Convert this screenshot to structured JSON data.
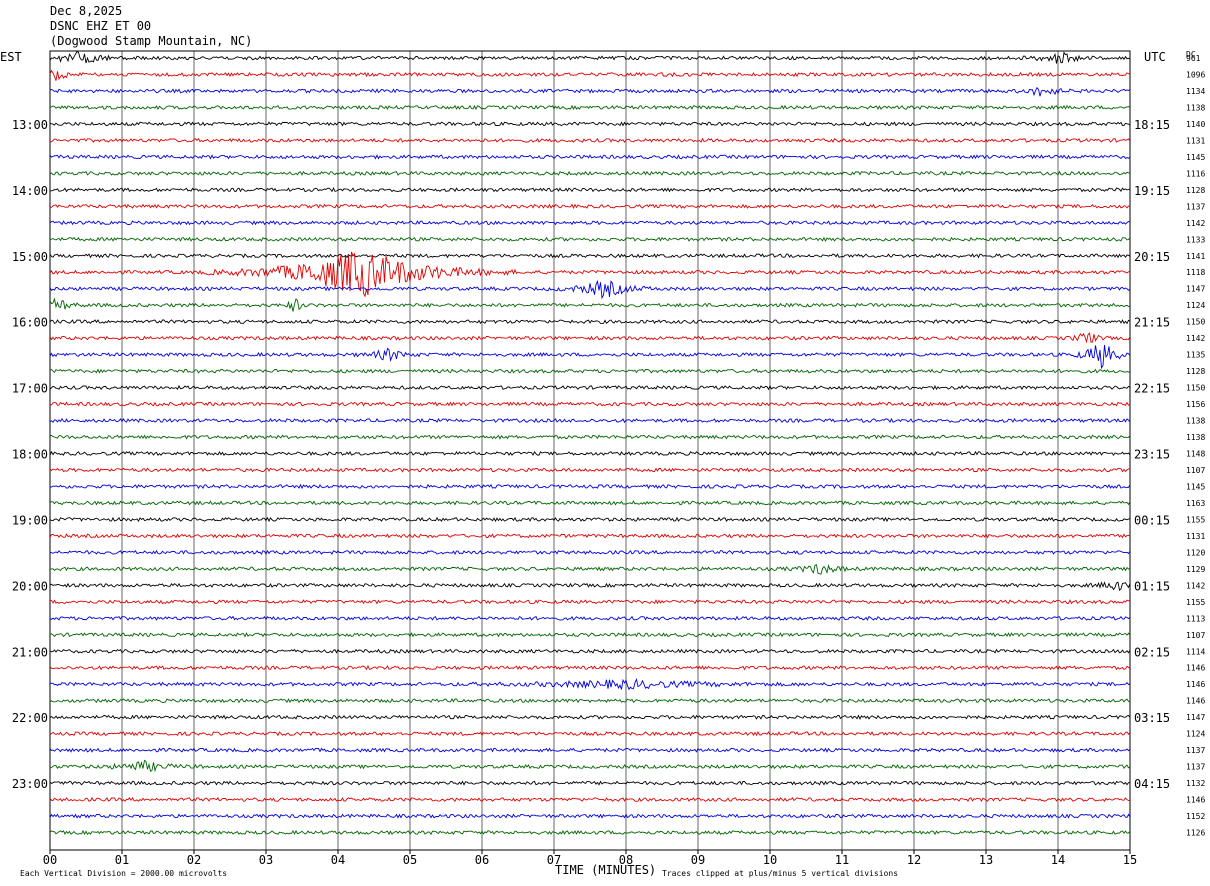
{
  "header": {
    "date": "Dec 8,2025",
    "station": "DSNC EHZ ET 00",
    "location": "(Dogwood Stamp Mountain, NC)"
  },
  "left_tz": "EST",
  "right_tz": "UTC",
  "dc_label": "DC",
  "footer": {
    "scale_note": "Each Vertical Division = 2000.00 microvolts",
    "x_axis_title": "TIME (MINUTES)",
    "clip_note": "Traces clipped at plus/minus 5 vertical divisions"
  },
  "colors": {
    "trace_cycle": [
      "#000000",
      "#e00000",
      "#0000e0",
      "#006400"
    ],
    "grid": "#000000",
    "background": "#ffffff"
  },
  "chart_data": {
    "type": "line",
    "subtype": "helicorder",
    "x_ticks": [
      "00",
      "01",
      "02",
      "03",
      "04",
      "05",
      "06",
      "07",
      "08",
      "09",
      "10",
      "11",
      "12",
      "13",
      "14",
      "15"
    ],
    "xlim": [
      0,
      15
    ],
    "xlabel": "TIME (MINUTES)",
    "traces_per_hour": 4,
    "row_count": 48,
    "left_hour_labels": [
      "13:00",
      "14:00",
      "15:00",
      "16:00",
      "17:00",
      "18:00",
      "19:00",
      "20:00",
      "21:00",
      "22:00",
      "23:00"
    ],
    "right_hour_labels": [
      "18:15",
      "19:15",
      "20:15",
      "21:15",
      "22:15",
      "23:15",
      "00:15",
      "01:15",
      "02:15",
      "03:15",
      "04:15"
    ],
    "dc_offsets": [
      "961",
      "1096",
      "1134",
      "1138",
      "1140",
      "1131",
      "1145",
      "1116",
      "1128",
      "1137",
      "1142",
      "1133",
      "1141",
      "1118",
      "1147",
      "1124",
      "1150",
      "1142",
      "1135",
      "1128",
      "1150",
      "1156",
      "1138",
      "1138",
      "1148",
      "1107",
      "1145",
      "1163",
      "1155",
      "1131",
      "1120",
      "1129",
      "1142",
      "1155",
      "1113",
      "1107",
      "1114",
      "1146",
      "1146",
      "1146",
      "1147",
      "1124",
      "1137",
      "1137",
      "1132",
      "1146",
      "1152",
      "1126"
    ],
    "events": [
      {
        "row": 0,
        "minute": 0.4,
        "width_min": 0.8,
        "amp": 6
      },
      {
        "row": 0,
        "minute": 14.0,
        "width_min": 0.5,
        "amp": 7
      },
      {
        "row": 1,
        "minute": 0.1,
        "width_min": 0.3,
        "amp": 6
      },
      {
        "row": 2,
        "minute": 13.8,
        "width_min": 0.4,
        "amp": 7
      },
      {
        "row": 13,
        "minute": 4.3,
        "width_min": 2.2,
        "amp": 26
      },
      {
        "row": 14,
        "minute": 7.7,
        "width_min": 0.8,
        "amp": 9
      },
      {
        "row": 15,
        "minute": 0.1,
        "width_min": 0.4,
        "amp": 7
      },
      {
        "row": 15,
        "minute": 3.4,
        "width_min": 0.2,
        "amp": 8
      },
      {
        "row": 17,
        "minute": 14.4,
        "width_min": 0.3,
        "amp": 8
      },
      {
        "row": 18,
        "minute": 14.6,
        "width_min": 0.5,
        "amp": 14
      },
      {
        "row": 18,
        "minute": 4.7,
        "width_min": 0.5,
        "amp": 6
      },
      {
        "row": 31,
        "minute": 10.7,
        "width_min": 0.6,
        "amp": 5
      },
      {
        "row": 32,
        "minute": 14.8,
        "width_min": 0.4,
        "amp": 6
      },
      {
        "row": 38,
        "minute": 8.0,
        "width_min": 2.5,
        "amp": 4
      },
      {
        "row": 43,
        "minute": 1.3,
        "width_min": 0.8,
        "amp": 5
      }
    ]
  }
}
